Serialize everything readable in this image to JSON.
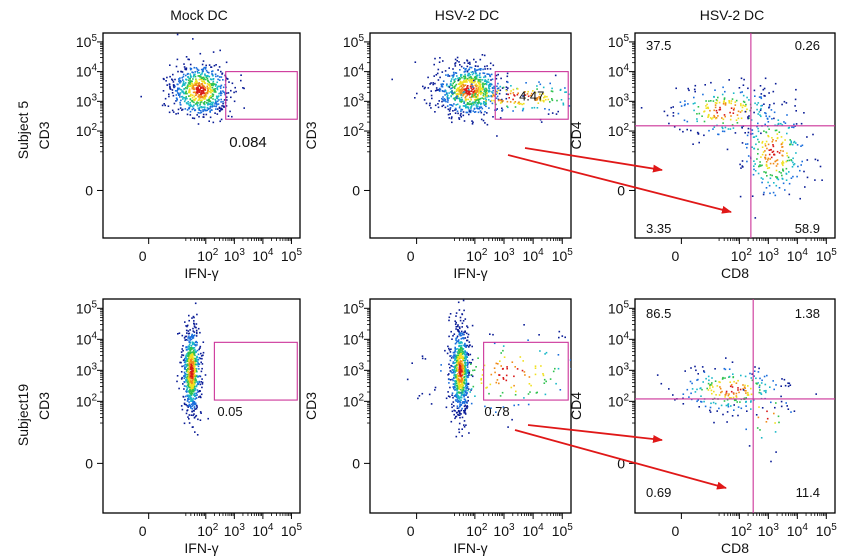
{
  "chart_data": {
    "type": "scatter",
    "scale": "log",
    "column_titles": [
      "Mock DC",
      "HSV-2 DC",
      "HSV-2 DC"
    ],
    "row_labels": [
      "Subject 5",
      "Subject19"
    ],
    "tick_labels": [
      "0",
      "10",
      "10",
      "10",
      "10"
    ],
    "tick_exponents": [
      "",
      "2",
      "3",
      "4",
      "5"
    ],
    "panels": [
      {
        "row": 0,
        "col": 0,
        "kind": "gate",
        "xlabel": "IFN-γ",
        "ylabel": "CD3",
        "gate": {
          "x": [
            500,
            160000
          ],
          "y": [
            250,
            10000
          ]
        },
        "gate_value": "0.084",
        "populations": [
          {
            "x": 60,
            "y": 2500,
            "sx": 0.16,
            "sy": 0.14,
            "n": 700
          }
        ]
      },
      {
        "row": 0,
        "col": 1,
        "kind": "gate",
        "xlabel": "IFN-γ",
        "ylabel": "CD3",
        "gate": {
          "x": [
            500,
            160000
          ],
          "y": [
            250,
            10000
          ]
        },
        "gate_value": "4.47",
        "populations": [
          {
            "x": 60,
            "y": 2500,
            "sx": 0.18,
            "sy": 0.14,
            "n": 700
          },
          {
            "x": 2500,
            "y": 1500,
            "sx": 0.45,
            "sy": 0.1,
            "n": 220
          }
        ]
      },
      {
        "row": 0,
        "col": 2,
        "kind": "quad",
        "xlabel": "CD8",
        "ylabel": "CD4",
        "quad_x": 250,
        "quad_y": 150,
        "quadrant_values": {
          "ul": "37.5",
          "ur": "0.26",
          "ll": "3.35",
          "lr": "58.9"
        },
        "populations": [
          {
            "x": 30,
            "y": 500,
            "sx": 0.3,
            "sy": 0.14,
            "n": 220
          },
          {
            "x": 1500,
            "y": 20,
            "sx": 0.18,
            "sy": 0.25,
            "n": 260
          }
        ]
      },
      {
        "row": 1,
        "col": 0,
        "kind": "gate",
        "xlabel": "IFN-γ",
        "ylabel": "CD3",
        "gate": {
          "x": [
            200,
            160000
          ],
          "y": [
            110,
            8000
          ]
        },
        "gate_value": "0.05",
        "populations": [
          {
            "x": 30,
            "y": 1000,
            "sx": 0.05,
            "sy": 0.22,
            "n": 700
          }
        ]
      },
      {
        "row": 1,
        "col": 1,
        "kind": "gate",
        "xlabel": "IFN-γ",
        "ylabel": "CD3",
        "gate": {
          "x": [
            200,
            160000
          ],
          "y": [
            110,
            8000
          ]
        },
        "gate_value": "0.78",
        "populations": [
          {
            "x": 30,
            "y": 1000,
            "sx": 0.05,
            "sy": 0.22,
            "n": 700
          },
          {
            "x": 1500,
            "y": 800,
            "sx": 0.45,
            "sy": 0.22,
            "n": 160
          }
        ]
      },
      {
        "row": 1,
        "col": 2,
        "kind": "quad",
        "xlabel": "CD8",
        "ylabel": "CD4",
        "quad_x": 300,
        "quad_y": 120,
        "quadrant_values": {
          "ul": "86.5",
          "ur": "1.38",
          "ll": "0.69",
          "lr": "11.4"
        },
        "populations": [
          {
            "x": 50,
            "y": 250,
            "sx": 0.3,
            "sy": 0.12,
            "n": 220
          },
          {
            "x": 800,
            "y": 40,
            "sx": 0.15,
            "sy": 0.2,
            "n": 30
          }
        ]
      }
    ]
  },
  "colors": {
    "gate": "#cc3399",
    "arrow": "#e01818",
    "density": [
      "#0a1c96",
      "#1a6edc",
      "#19b8c8",
      "#2fc24e",
      "#f0e020",
      "#f08c18",
      "#d81818"
    ]
  }
}
